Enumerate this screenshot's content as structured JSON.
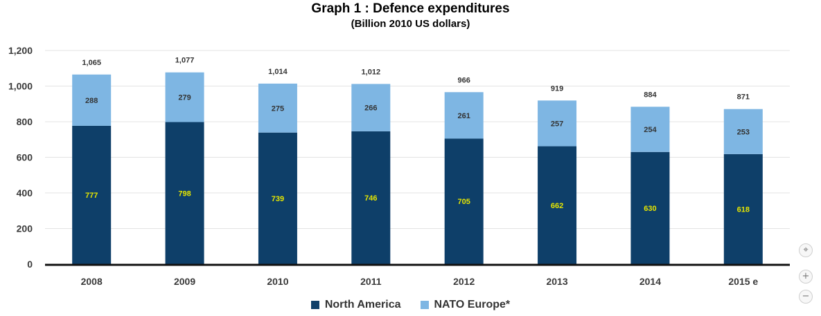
{
  "title": "Graph 1 : Defence expenditures",
  "subtitle": "(Billion 2010 US dollars)",
  "colors": {
    "north_america": "#0e3f69",
    "nato_europe": "#7eb6e3"
  },
  "legend": [
    {
      "name": "North America",
      "color": "#0e3f69"
    },
    {
      "name": "NATO Europe*",
      "color": "#7eb6e3"
    }
  ],
  "zoom_controls": {
    "reset": "⌖",
    "zoom_in": "+",
    "zoom_out": "−"
  },
  "chart_data": {
    "type": "bar",
    "stacked": true,
    "title": "Graph 1 : Defence expenditures",
    "subtitle": "(Billion 2010 US dollars)",
    "xlabel": "",
    "ylabel": "",
    "categories": [
      "2008",
      "2009",
      "2010",
      "2011",
      "2012",
      "2013",
      "2014",
      "2015 e"
    ],
    "series": [
      {
        "name": "North America",
        "values": [
          777,
          798,
          739,
          746,
          705,
          662,
          630,
          618
        ]
      },
      {
        "name": "NATO Europe*",
        "values": [
          288,
          279,
          275,
          266,
          261,
          257,
          254,
          253
        ]
      }
    ],
    "totals": [
      "1,065",
      "1,077",
      "1,014",
      "1,012",
      "966",
      "919",
      "884",
      "871"
    ],
    "ylim": [
      0,
      1200
    ],
    "yticks": [
      0,
      200,
      400,
      600,
      800,
      1000,
      1200
    ],
    "ytick_labels": [
      "0",
      "200",
      "400",
      "600",
      "800",
      "1,000",
      "1,200"
    ],
    "grid": true,
    "legend_position": "bottom"
  }
}
